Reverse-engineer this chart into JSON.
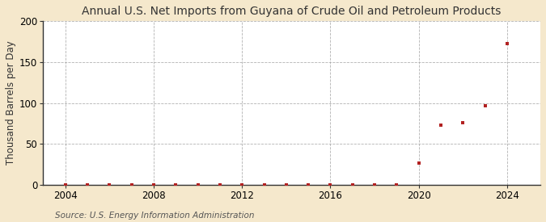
{
  "title": "Annual U.S. Net Imports from Guyana of Crude Oil and Petroleum Products",
  "ylabel": "Thousand Barrels per Day",
  "source": "Source: U.S. Energy Information Administration",
  "background_color": "#f5e8cc",
  "plot_bg_color": "#ffffff",
  "marker_color": "#b22222",
  "grid_color": "#aaaaaa",
  "years": [
    2004,
    2005,
    2006,
    2007,
    2008,
    2009,
    2010,
    2011,
    2012,
    2013,
    2014,
    2015,
    2016,
    2017,
    2018,
    2019,
    2020,
    2021,
    2022,
    2023,
    2024
  ],
  "values": [
    0,
    0,
    0,
    0,
    0,
    0,
    0,
    0,
    0,
    0,
    0,
    0,
    0,
    0,
    0,
    0,
    27,
    73,
    76,
    97,
    173
  ],
  "xlim": [
    2003,
    2025.5
  ],
  "ylim": [
    0,
    200
  ],
  "yticks": [
    0,
    50,
    100,
    150,
    200
  ],
  "xticks": [
    2004,
    2008,
    2012,
    2016,
    2020,
    2024
  ],
  "title_fontsize": 10,
  "label_fontsize": 8.5,
  "tick_fontsize": 8.5,
  "source_fontsize": 7.5
}
